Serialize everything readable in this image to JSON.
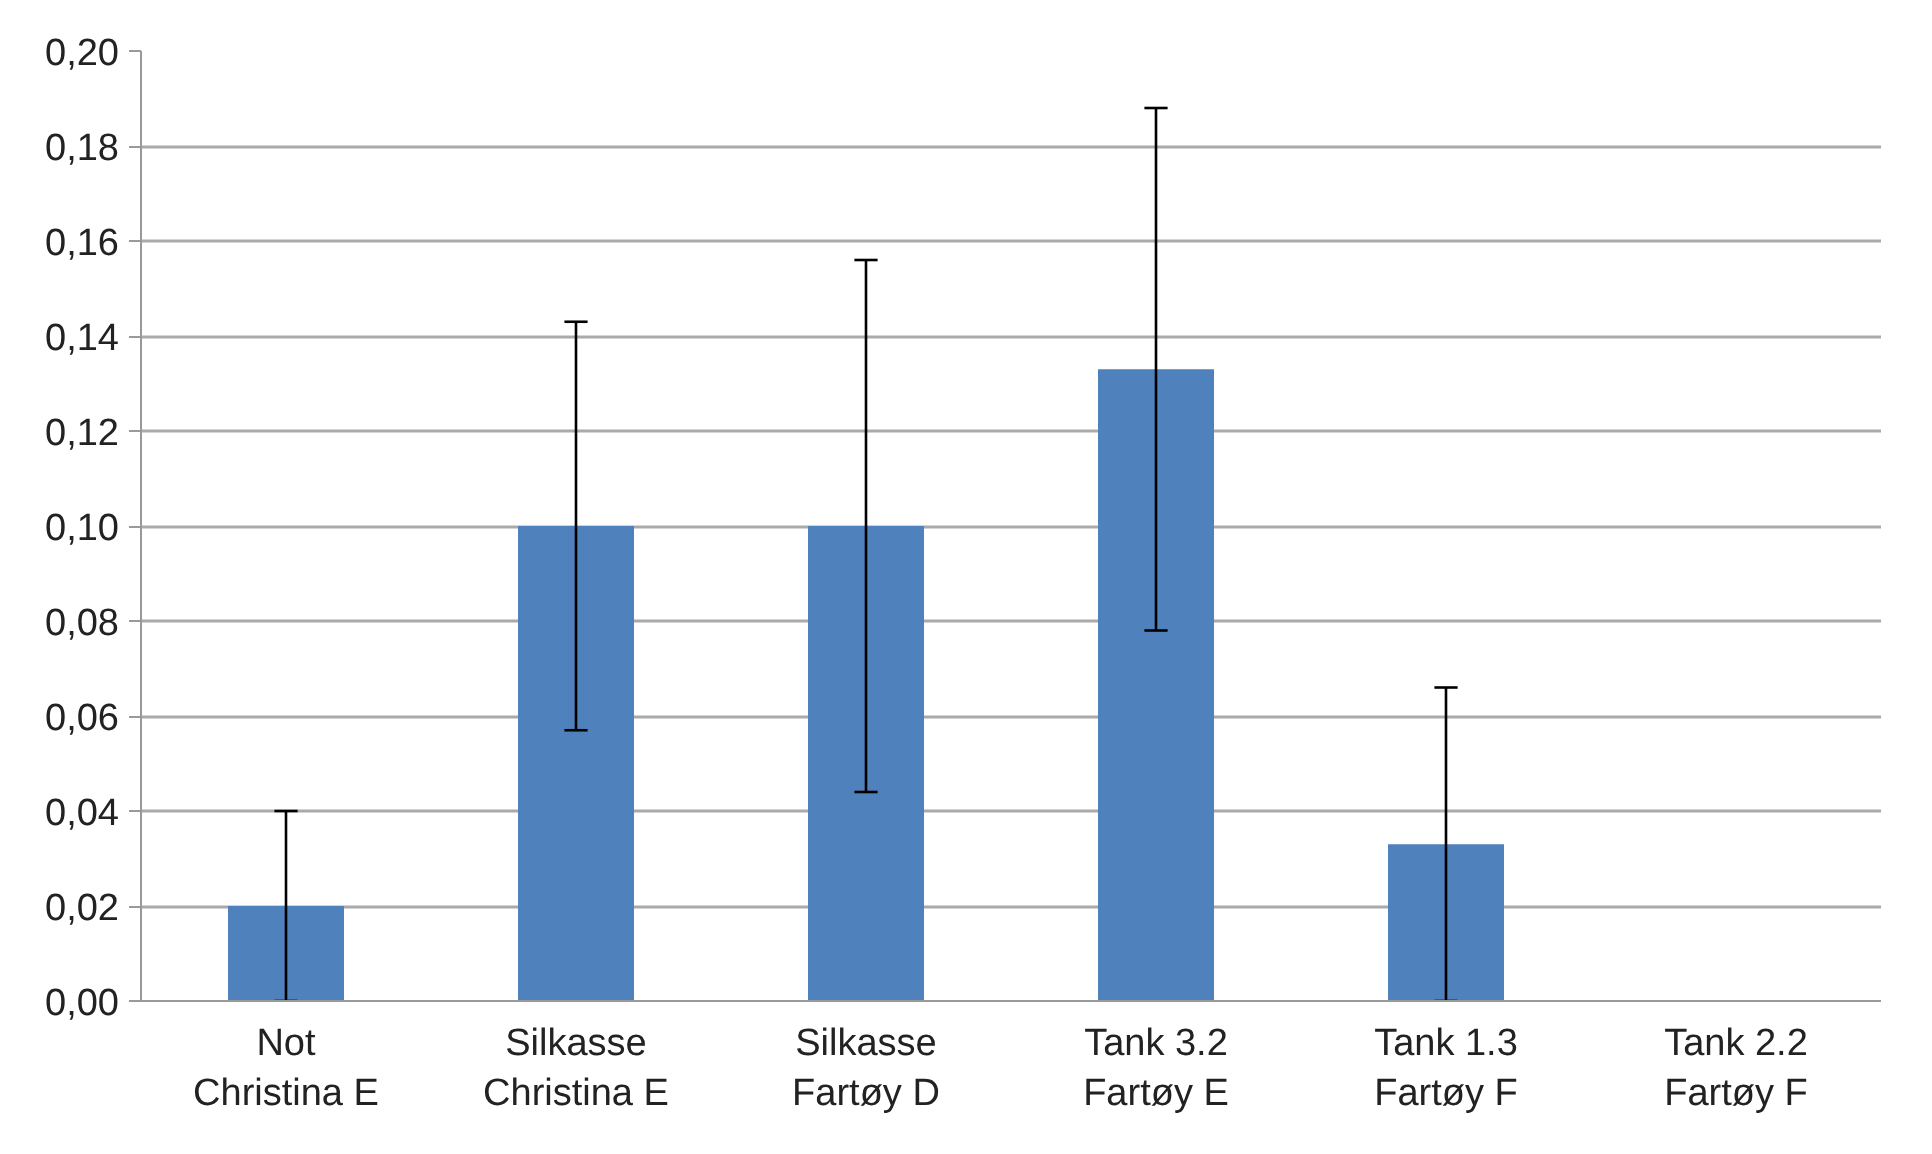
{
  "chart_data": {
    "type": "bar",
    "categories": [
      "Not\nChristina E",
      "Silkasse\nChristina E",
      "Silkasse\nFartøy D",
      "Tank 3.2\nFartøy E",
      "Tank 1.3\nFartøy F",
      "Tank 2.2\nFartøy F"
    ],
    "values": [
      0.02,
      0.1,
      0.1,
      0.133,
      0.033,
      0
    ],
    "errors": [
      0.02,
      0.043,
      0.056,
      0.055,
      0.033,
      null
    ],
    "color": "#4f81bd",
    "ylim": [
      0,
      0.2
    ],
    "yticks": [
      {
        "value": 0,
        "label": "0,00"
      },
      {
        "value": 0.02,
        "label": "0,02"
      },
      {
        "value": 0.04,
        "label": "0,04"
      },
      {
        "value": 0.06,
        "label": "0,06"
      },
      {
        "value": 0.08,
        "label": "0,08"
      },
      {
        "value": 0.1,
        "label": "0,10"
      },
      {
        "value": 0.12,
        "label": "0,12"
      },
      {
        "value": 0.14,
        "label": "0,14"
      },
      {
        "value": 0.16,
        "label": "0,16"
      },
      {
        "value": 0.18,
        "label": "0,18"
      },
      {
        "value": 0.2,
        "label": "0,20"
      }
    ],
    "grid": "y"
  }
}
